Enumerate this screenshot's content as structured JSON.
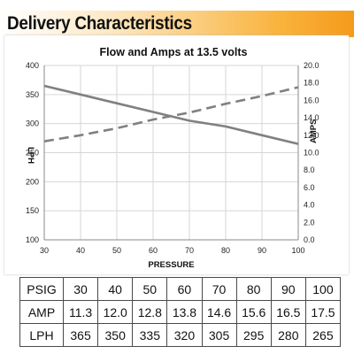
{
  "header": {
    "title": "Delivery Characteristics"
  },
  "chart_data": {
    "type": "line",
    "title": "Flow and Amps at 13.5 volts",
    "xlabel": "PRESSURE",
    "ylabel_left": "LPH",
    "ylabel_right": "AMPS",
    "xlim": [
      30,
      100
    ],
    "ylim_left": [
      100,
      400
    ],
    "ylim_right": [
      0.0,
      20.0
    ],
    "x_ticks": [
      30,
      40,
      50,
      60,
      70,
      80,
      90,
      100
    ],
    "y_left_ticks": [
      100,
      150,
      200,
      250,
      300,
      350,
      400
    ],
    "y_right_ticks": [
      "0.0",
      "2.0",
      "4.0",
      "6.0",
      "8.0",
      "10.0",
      "12.0",
      "14.0",
      "16.0",
      "18.0",
      "20.0"
    ],
    "grid": true,
    "x": [
      30,
      40,
      50,
      60,
      70,
      80,
      90,
      100
    ],
    "series": [
      {
        "axis": "left",
        "style": "solid",
        "color": "#808080",
        "values": [
          365,
          350,
          335,
          320,
          305,
          295,
          280,
          265
        ]
      },
      {
        "axis": "right",
        "style": "dashed",
        "color": "#808080",
        "values": [
          11.3,
          12.0,
          12.8,
          13.8,
          14.6,
          15.6,
          16.5,
          17.5
        ]
      }
    ]
  },
  "table": {
    "rows": [
      {
        "label": "PSIG",
        "values": [
          "30",
          "40",
          "50",
          "60",
          "70",
          "80",
          "90",
          "100"
        ]
      },
      {
        "label": "AMP",
        "values": [
          "11.3",
          "12.0",
          "12.8",
          "13.8",
          "14.6",
          "15.6",
          "16.5",
          "17.5"
        ]
      },
      {
        "label": "LPH",
        "values": [
          "365",
          "350",
          "335",
          "320",
          "305",
          "295",
          "280",
          "265"
        ]
      }
    ]
  }
}
